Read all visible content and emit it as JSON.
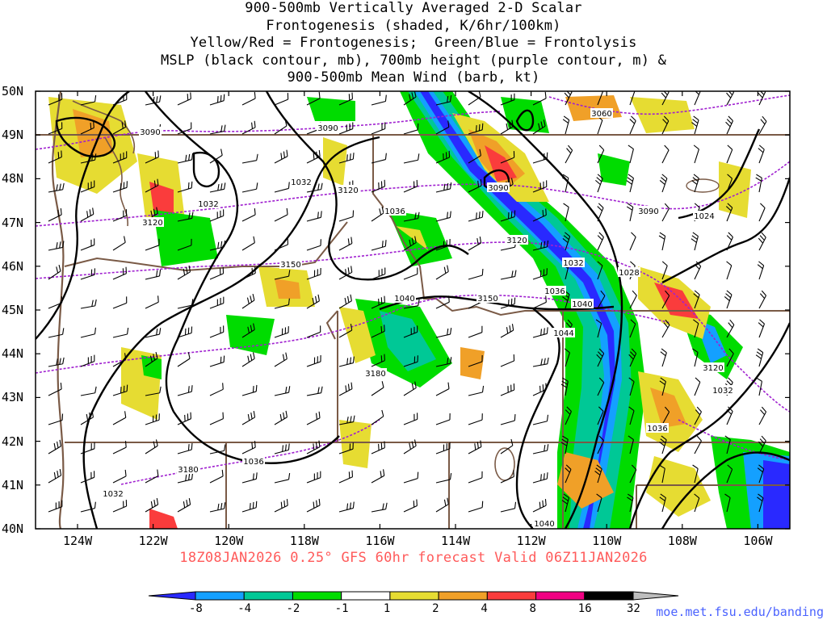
{
  "title_lines": [
    "900-500mb Vertically Averaged 2-D Scalar",
    "Frontogenesis (shaded, K/6hr/100km)",
    "Yellow/Red = Frontogenesis;  Green/Blue = Frontolysis",
    "MSLP (black contour, mb), 700mb height (purple contour, m) &",
    "900-500mb Mean Wind (barb, kt)"
  ],
  "lat_labels": [
    "50N",
    "49N",
    "48N",
    "47N",
    "46N",
    "45N",
    "44N",
    "43N",
    "42N",
    "41N",
    "40N"
  ],
  "lon_labels": [
    "124W",
    "122W",
    "120W",
    "118W",
    "116W",
    "114W",
    "112W",
    "110W",
    "108W",
    "106W"
  ],
  "valid_line": "18Z08JAN2026 0.25° GFS 60hr forecast Valid 06Z11JAN2026",
  "colorbar": {
    "labels": [
      "-8",
      "-4",
      "-2",
      "-1",
      "1",
      "2",
      "4",
      "8",
      "16",
      "32"
    ],
    "colors": [
      "#2929ff",
      "#14a0ff",
      "#00c896",
      "#00dc00",
      "#ffffff",
      "#e6dc32",
      "#f0a028",
      "#fa3c3c",
      "#f00082",
      "#000000",
      "#bebebe"
    ]
  },
  "mslp_labels": [
    "1032",
    "1032",
    "1036",
    "1040",
    "1036",
    "1032",
    "1028",
    "1024",
    "1040",
    "1044",
    "1036",
    "1032",
    "1036",
    "1032",
    "1040"
  ],
  "height_labels": [
    "3090",
    "3090",
    "3120",
    "3060",
    "3090",
    "3090",
    "3120",
    "3120",
    "3150",
    "3150",
    "3180",
    "3120",
    "3180"
  ],
  "source_url": "moe.met.fsu.edu/banding"
}
